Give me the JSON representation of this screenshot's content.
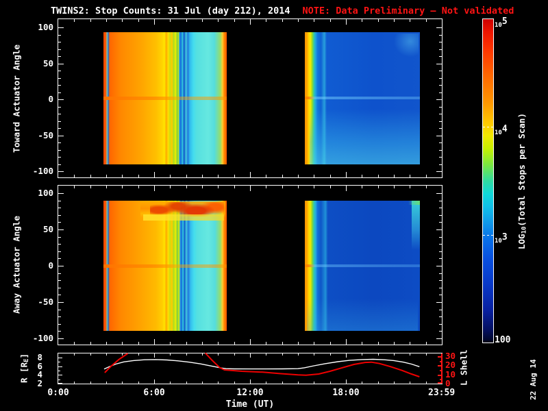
{
  "title": {
    "main": "TWINS2: Stop Counts: 31 Jul (day 212), 2014",
    "note": "NOTE: Data Preliminary — Not validated"
  },
  "colors": {
    "background": "#000000",
    "axis": "#ffffff",
    "note_red": "#ff1414",
    "lshell_red": "#ff1414",
    "r_line": "#ffffff",
    "l_line": "#ee0000"
  },
  "date_stamp": "22 Aug 14",
  "xaxis": {
    "label": "Time (UT)",
    "tick_labels": [
      "0:00",
      "6:00",
      "12:00",
      "18:00",
      "23:59"
    ],
    "tick_hours": [
      0,
      6,
      12,
      18,
      23.983
    ]
  },
  "panels": {
    "toward": {
      "ylabel": "Toward Actuator Angle",
      "yticks": [
        100,
        50,
        0,
        -50,
        -100
      ]
    },
    "away": {
      "ylabel": "Away Actuator Angle",
      "yticks": [
        100,
        50,
        0,
        -50,
        -100
      ]
    },
    "orbit": {
      "r_label_pre": "R [R",
      "r_label_sub": "E",
      "r_label_post": "]",
      "rticks": [
        8,
        6,
        4,
        2
      ],
      "l_label": "L Shell",
      "lticks": [
        30,
        20,
        10,
        0
      ]
    }
  },
  "colorbar": {
    "label_pre": "LOG",
    "label_sub": "10",
    "label_post": "(Total Stops per Scan)",
    "ticks": [
      {
        "base": "10",
        "exp": "5",
        "log": 5
      },
      {
        "base": "10",
        "exp": "4",
        "log": 4
      },
      {
        "base": "10",
        "exp": "3",
        "log": 3
      }
    ],
    "bottom_label": "100",
    "stops": [
      [
        0,
        "#cc0000"
      ],
      [
        4,
        "#ee1500"
      ],
      [
        10,
        "#ff3800"
      ],
      [
        18,
        "#ff6a00"
      ],
      [
        26,
        "#ff9800"
      ],
      [
        32,
        "#ffc800"
      ],
      [
        36,
        "#f2e800"
      ],
      [
        40,
        "#c8f000"
      ],
      [
        45,
        "#7ae840"
      ],
      [
        50,
        "#30dca0"
      ],
      [
        54,
        "#10d8d8"
      ],
      [
        58,
        "#10c0e8"
      ],
      [
        63,
        "#1098e8"
      ],
      [
        68,
        "#0870e8"
      ],
      [
        74,
        "#0850e0"
      ],
      [
        82,
        "#0838c8"
      ],
      [
        90,
        "#0820a0"
      ],
      [
        96,
        "#041060"
      ],
      [
        99,
        "#020830"
      ],
      [
        100,
        "#000010"
      ]
    ]
  },
  "chart_data": [
    {
      "type": "heatmap",
      "title": "Toward Actuator Angle",
      "x_unit": "hours UT",
      "x_range": [
        0,
        24
      ],
      "y_range": [
        -100,
        100
      ],
      "value_scale": "log10 total stops per scan, 100 to 1e5",
      "blocks": [
        {
          "t0": 2.83,
          "t1": 10.54,
          "a0": -90.5,
          "a1": 93.5,
          "stops": [
            [
              0,
              "#e84400"
            ],
            [
              1.8,
              "#ff5500"
            ],
            [
              3,
              "#70c4b4"
            ],
            [
              4,
              "#2468cc"
            ],
            [
              5,
              "#ff6600"
            ],
            [
              14,
              "#ff8800"
            ],
            [
              30,
              "#ffa300"
            ],
            [
              43,
              "#ffc000"
            ],
            [
              48,
              "#ffd600"
            ],
            [
              49.5,
              "#ffe600"
            ],
            [
              51,
              "#ffaa00"
            ],
            [
              52.5,
              "#ffe000"
            ],
            [
              54,
              "#ccdd11"
            ],
            [
              55.5,
              "#ffcc00"
            ],
            [
              57,
              "#aadd22"
            ],
            [
              58.5,
              "#eeee00"
            ],
            [
              60,
              "#74cc44"
            ],
            [
              60.8,
              "#dcec00"
            ],
            [
              61.5,
              "#30aadd"
            ],
            [
              62.8,
              "#1166dd"
            ],
            [
              64,
              "#34ccdd"
            ],
            [
              65.5,
              "#1155cc"
            ],
            [
              67,
              "#44ccdd"
            ],
            [
              68.5,
              "#2277dd"
            ],
            [
              70,
              "#30bbee"
            ],
            [
              73,
              "#44ddee"
            ],
            [
              75.6,
              "#55e0e0"
            ],
            [
              85,
              "#66e8e0"
            ],
            [
              90,
              "#55dddd"
            ],
            [
              95,
              "#99dd66"
            ],
            [
              96.5,
              "#ffcc33"
            ],
            [
              98,
              "#ff8800"
            ],
            [
              100,
              "#ff5500"
            ]
          ],
          "features": [
            {
              "l": 0,
              "t": 0.488,
              "w": 1,
              "h": 0.024,
              "bg": "linear-gradient(to right, rgba(255,115,0,0.95) 0%, rgba(255,140,0,0.85) 40%, rgba(255,160,0,0.45) 60%, rgba(255,150,0,0.55) 100%)"
            }
          ]
        },
        {
          "t0": 15.43,
          "t1": 22.63,
          "a0": -90.5,
          "a1": 93.5,
          "stops": [
            [
              0,
              "#ff9100"
            ],
            [
              2,
              "#ffa800"
            ],
            [
              3.5,
              "#ffd800"
            ],
            [
              5,
              "#f0ee00"
            ],
            [
              6.5,
              "#8cd830"
            ],
            [
              8,
              "#2cc8b0"
            ],
            [
              9.5,
              "#20a0e0"
            ],
            [
              11,
              "#1078dc"
            ],
            [
              14,
              "#0f60d4"
            ],
            [
              17,
              "#28a0dc"
            ],
            [
              19,
              "#105cd2"
            ],
            [
              60,
              "#0e52cc"
            ],
            [
              100,
              "#1155cc"
            ]
          ],
          "features": [
            {
              "l": 0.75,
              "t": 0.01,
              "w": 0.24,
              "h": 0.2,
              "bg": "radial-gradient(ellipse 60% 60% at 70% 30%, rgba(80,180,235,0.55), rgba(80,180,235,0) 100%)"
            },
            {
              "l": 0.04,
              "t": 0.58,
              "w": 0.96,
              "h": 0.42,
              "bg": "linear-gradient(to bottom, rgba(50,170,230,0) 0%, rgba(60,190,235,0.42) 60%, rgba(80,215,235,0.55) 100%)"
            },
            {
              "l": 0,
              "t": 0.49,
              "w": 1,
              "h": 0.02,
              "bg": "linear-gradient(to right, rgba(255,130,0,0.95) 0%, rgba(255,130,0,0.9) 3%, rgba(120,210,255,0.5) 9%, rgba(120,210,255,0.35) 100%)"
            }
          ]
        }
      ]
    },
    {
      "type": "heatmap",
      "title": "Away Actuator Angle",
      "x_unit": "hours UT",
      "x_range": [
        0,
        24
      ],
      "y_range": [
        -100,
        100
      ],
      "value_scale": "log10 total stops per scan, 100 to 1e5",
      "blocks": [
        {
          "t0": 2.83,
          "t1": 10.54,
          "a0": -90,
          "a1": 90,
          "stops": [
            [
              0,
              "#e84400"
            ],
            [
              1.8,
              "#ff5500"
            ],
            [
              3,
              "#66c0b0"
            ],
            [
              4,
              "#2266cc"
            ],
            [
              5,
              "#ff6600"
            ],
            [
              14,
              "#ff8800"
            ],
            [
              30,
              "#ffa300"
            ],
            [
              43,
              "#ffbb00"
            ],
            [
              48,
              "#ffd000"
            ],
            [
              49.5,
              "#ffe400"
            ],
            [
              51,
              "#ffaa00"
            ],
            [
              52.5,
              "#ffe000"
            ],
            [
              54,
              "#ccdd11"
            ],
            [
              55.5,
              "#ffcc00"
            ],
            [
              57,
              "#aadd22"
            ],
            [
              58.5,
              "#eeee00"
            ],
            [
              60,
              "#77cc44"
            ],
            [
              61.2,
              "#ddee00"
            ],
            [
              62.2,
              "#33aadd"
            ],
            [
              63.2,
              "#1166dd"
            ],
            [
              64.5,
              "#33ccdd"
            ],
            [
              65.8,
              "#1155cc"
            ],
            [
              67.2,
              "#44ccdd"
            ],
            [
              68.8,
              "#2277dd"
            ],
            [
              70.5,
              "#33bbee"
            ],
            [
              73.5,
              "#44ddee"
            ],
            [
              76,
              "#55e0e0"
            ],
            [
              85,
              "#66e8e0"
            ],
            [
              90.5,
              "#55dddd"
            ],
            [
              95,
              "#99dd66"
            ],
            [
              96.5,
              "#ffcc33"
            ],
            [
              98,
              "#ff8800"
            ],
            [
              100,
              "#ff5500"
            ]
          ],
          "features": [
            {
              "l": 0.3,
              "t": 0.005,
              "w": 0.69,
              "h": 0.13,
              "bg": "linear-gradient(to bottom, rgba(255,170,0,0.9) 0%, rgba(255,140,0,0.75) 45%, rgba(255,200,0,0.5) 75%, rgba(255,220,0,0) 100%)"
            },
            {
              "l": 0.38,
              "t": 0.012,
              "w": 0.6,
              "h": 0.11,
              "bg": "radial-gradient(ellipse 22% 40% at 12% 55%, rgba(235,70,0,0.95) 50%, rgba(235,70,0,0) 100%), radial-gradient(ellipse 20% 45% at 38% 30%, rgba(225,60,0,0.9) 45%, rgba(225,60,0,0) 100%), radial-gradient(ellipse 26% 50% at 62% 60%, rgba(230,50,0,0.95) 50%, rgba(230,50,0,0) 100%), radial-gradient(ellipse 20% 50% at 88% 35%, rgba(255,90,0,0.9) 45%, rgba(255,90,0,0) 100%)"
            },
            {
              "l": 0.32,
              "t": 0.105,
              "w": 0.66,
              "h": 0.05,
              "bg": "linear-gradient(to right, rgba(255,235,50,0.75), rgba(255,215,30,0.7))"
            },
            {
              "l": 0,
              "t": 0.49,
              "w": 1,
              "h": 0.024,
              "bg": "linear-gradient(to right, rgba(255,115,0,0.95) 0%, rgba(255,140,0,0.85) 40%, rgba(255,160,0,0.45) 60%, rgba(255,150,0,0.55) 100%)"
            }
          ]
        },
        {
          "t0": 15.43,
          "t1": 22.63,
          "a0": -90,
          "a1": 90,
          "stops": [
            [
              0,
              "#ff9100"
            ],
            [
              2,
              "#ffa800"
            ],
            [
              3.5,
              "#ffd800"
            ],
            [
              5,
              "#eaea00"
            ],
            [
              6.5,
              "#80d23c"
            ],
            [
              8,
              "#2cc8b4"
            ],
            [
              9.5,
              "#24a8e0"
            ],
            [
              11,
              "#1070d8"
            ],
            [
              14,
              "#0e56c8"
            ],
            [
              18,
              "#2090d8"
            ],
            [
              20,
              "#0d4ec4"
            ],
            [
              60,
              "#0c48c0"
            ],
            [
              100,
              "#0d4cc4"
            ]
          ],
          "features": [
            {
              "l": 0.93,
              "t": 0,
              "w": 0.07,
              "h": 0.38,
              "bg": "linear-gradient(to bottom, rgba(60,220,220,0.9), rgba(60,200,230,0.5) 60%, rgba(60,200,230,0) 100%)"
            },
            {
              "l": 0.9,
              "t": 0,
              "w": 0.1,
              "h": 0.035,
              "bg": "linear-gradient(to right, rgba(120,220,120,0), #66dd77)"
            },
            {
              "l": 0.02,
              "t": 0.75,
              "w": 0.96,
              "h": 0.25,
              "bg": "linear-gradient(to bottom, rgba(40,150,225,0) 0%, rgba(55,175,230,0.3) 100%)"
            },
            {
              "l": 0,
              "t": 0.49,
              "w": 1,
              "h": 0.02,
              "bg": "linear-gradient(to right, rgba(255,130,0,0.95) 0%, rgba(255,130,0,0.9) 3%, rgba(110,200,255,0.45) 9%, rgba(110,200,255,0.3) 100%)"
            }
          ]
        }
      ]
    },
    {
      "type": "line",
      "title": "Orbit parameters",
      "x_range": [
        0,
        24
      ],
      "left_axis": {
        "label": "R [RE]",
        "range": [
          2,
          9
        ]
      },
      "right_axis": {
        "label": "L Shell",
        "range": [
          0,
          33
        ]
      },
      "series": [
        {
          "name": "R",
          "axis": "left",
          "color": "#ffffff",
          "points": [
            [
              2.87,
              5.35
            ],
            [
              3.2,
              5.9
            ],
            [
              3.6,
              6.5
            ],
            [
              4.1,
              7.0
            ],
            [
              4.7,
              7.3
            ],
            [
              5.4,
              7.5
            ],
            [
              6.1,
              7.55
            ],
            [
              6.8,
              7.45
            ],
            [
              7.5,
              7.25
            ],
            [
              8.2,
              6.95
            ],
            [
              8.9,
              6.55
            ],
            [
              9.6,
              6.05
            ],
            [
              10.2,
              5.6
            ],
            [
              10.5,
              5.45
            ],
            [
              11,
              5.4
            ],
            [
              12,
              5.38
            ],
            [
              13,
              5.38
            ],
            [
              14,
              5.4
            ],
            [
              15,
              5.45
            ],
            [
              15.4,
              5.65
            ],
            [
              16,
              6.1
            ],
            [
              16.7,
              6.6
            ],
            [
              17.5,
              7.05
            ],
            [
              18.2,
              7.35
            ],
            [
              19,
              7.55
            ],
            [
              19.7,
              7.6
            ],
            [
              20.4,
              7.5
            ],
            [
              21,
              7.3
            ],
            [
              21.6,
              6.95
            ],
            [
              22.1,
              6.5
            ],
            [
              22.6,
              5.9
            ]
          ]
        },
        {
          "name": "L Shell",
          "axis": "right",
          "color": "#ee0000",
          "segments": [
            [
              [
                2.91,
                12
              ],
              [
                3.3,
                19
              ],
              [
                3.8,
                26.5
              ],
              [
                4.35,
                33
              ]
            ],
            [
              [
                9.2,
                33.5
              ],
              [
                9.6,
                26
              ],
              [
                10.1,
                17.5
              ],
              [
                10.4,
                15
              ],
              [
                11.5,
                13.5
              ],
              [
                12.8,
                12.5
              ],
              [
                13.8,
                11
              ],
              [
                15.0,
                9.5
              ],
              [
                15.5,
                9.2
              ],
              [
                16.3,
                10.5
              ],
              [
                17.0,
                13.5
              ],
              [
                17.8,
                17.5
              ],
              [
                18.5,
                21
              ],
              [
                19.2,
                23.2
              ],
              [
                19.6,
                23.5
              ],
              [
                20.1,
                22
              ],
              [
                20.8,
                18.5
              ],
              [
                21.5,
                14.5
              ],
              [
                22.1,
                10.5
              ],
              [
                22.6,
                7.5
              ]
            ]
          ]
        }
      ]
    }
  ]
}
